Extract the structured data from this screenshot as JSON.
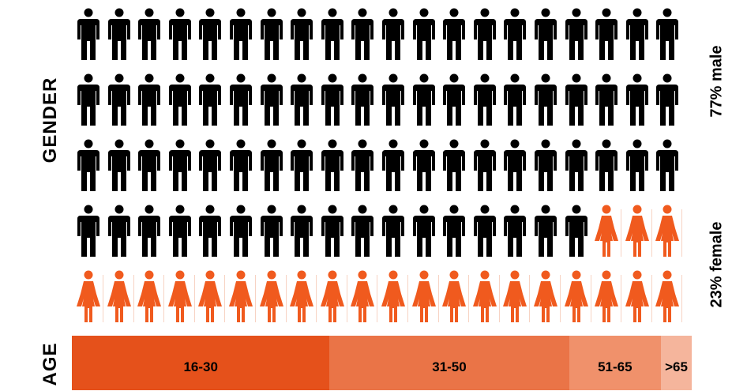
{
  "gender_axis_label": "GENDER",
  "age_axis_label": "AGE",
  "male_label": "77% male",
  "female_label": "23% female",
  "colors": {
    "male": "#000000",
    "female": "#f05a1e",
    "age_segments": [
      "#e5511b",
      "#ea7447",
      "#f0916b",
      "#f5b59c"
    ]
  },
  "chart_data": [
    {
      "type": "pictogram",
      "title": "",
      "series": [
        {
          "name": "77% male",
          "percent": 77,
          "icon": "male-person-icon"
        },
        {
          "name": "23% female",
          "percent": 23,
          "icon": "female-person-icon"
        }
      ],
      "grid": {
        "rows": 5,
        "columns": 20,
        "total_icons": 100
      }
    },
    {
      "type": "bar",
      "stacked": true,
      "categories": [
        "16-30",
        "31-50",
        "51-65",
        ">65"
      ],
      "values": [
        42,
        39,
        15,
        5
      ],
      "value_unit": "approx. percent of bar width"
    }
  ]
}
